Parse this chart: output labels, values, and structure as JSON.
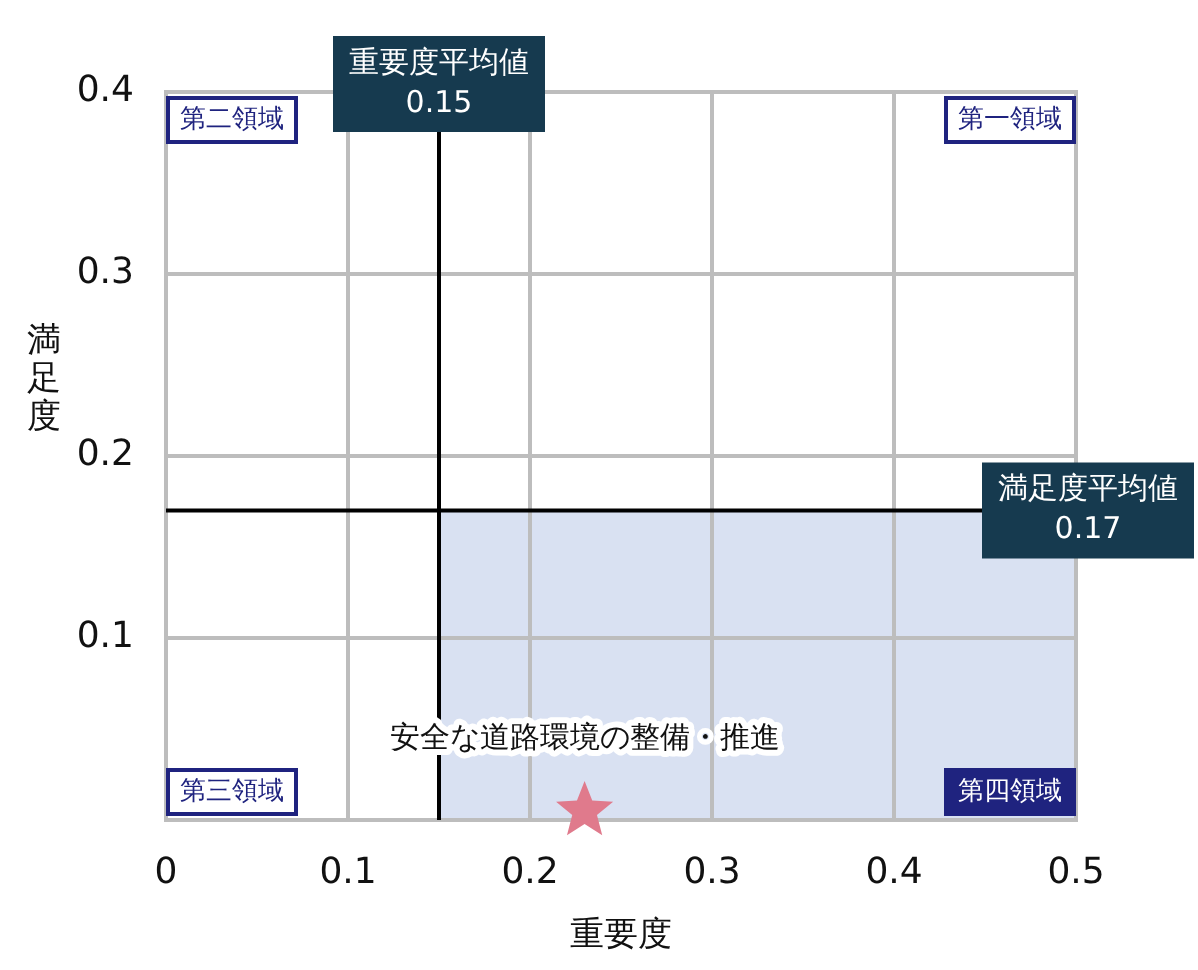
{
  "chart_data": {
    "type": "scatter",
    "xlabel": "重要度",
    "ylabel": "満足度",
    "series": [
      {
        "color": "#e07a8c",
        "x": [
          0.23
        ],
        "values": [
          0.005
        ]
      }
    ],
    "xlim": [
      0,
      0.5
    ],
    "xticks": [
      0,
      0.1,
      0.2,
      0.3,
      0.4,
      0.5
    ],
    "ylim": [
      0,
      0.4
    ],
    "yticks": [
      0.1,
      0.2,
      0.3,
      0.4
    ],
    "grid": true,
    "legend": false,
    "marker": "star",
    "ref_lines": [
      {
        "axis": "x",
        "value": 0.15,
        "label": "重要度平均値\n0.15"
      },
      {
        "axis": "y",
        "value": 0.17,
        "label": "満足度平均値\n0.17"
      }
    ],
    "bands": [
      {
        "axis": "x",
        "from": 0.15,
        "to": 0.5,
        "color": "#d9e1f2"
      }
    ],
    "annotations": [
      "第二領域",
      "第一領域",
      "第三領域",
      "第四領域",
      {
        "text": "安全な道路環境の整備・推進",
        "x": 0.23,
        "y": 0.005
      }
    ]
  }
}
